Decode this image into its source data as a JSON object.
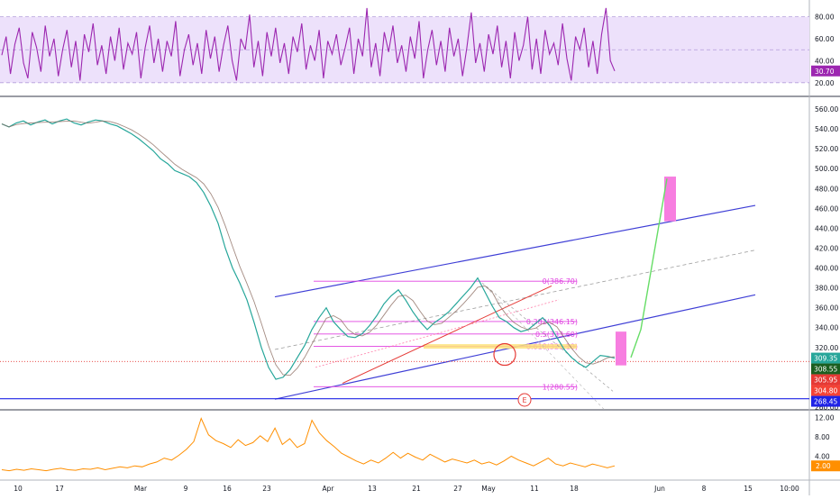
{
  "chart_data": [
    {
      "type": "line",
      "panel": "oscillator",
      "series": [
        {
          "values": [
            45,
            62,
            28,
            55,
            70,
            38,
            24,
            66,
            52,
            30,
            72,
            44,
            60,
            26,
            50,
            68,
            34,
            58,
            22,
            64,
            48,
            74,
            36,
            54,
            28,
            62,
            40,
            70,
            32,
            56,
            46,
            66,
            24,
            52,
            72,
            38,
            60,
            30,
            58,
            44,
            76,
            26,
            50,
            64,
            36,
            56,
            28,
            68,
            42,
            62,
            30,
            54,
            72,
            40,
            22,
            60,
            50,
            82,
            34,
            58,
            26,
            66,
            44,
            70,
            38,
            56,
            28,
            62,
            48,
            74,
            32,
            54,
            40,
            68,
            24,
            58,
            46,
            64,
            36,
            52,
            70,
            28,
            60,
            44,
            88,
            34,
            56,
            26,
            66,
            48,
            72,
            38,
            54,
            30,
            62,
            42,
            76,
            24,
            50,
            68,
            36,
            58,
            30,
            70,
            44,
            60,
            26,
            52,
            84,
            38,
            56,
            30,
            64,
            46,
            72,
            34,
            58,
            24,
            66,
            40,
            54,
            80,
            32,
            60,
            28,
            68,
            46,
            56,
            36,
            74,
            42,
            22,
            62,
            50,
            70,
            34,
            58,
            28,
            64,
            88,
            40,
            30.7
          ]
        }
      ],
      "ylim": [
        10,
        92
      ],
      "y_ticks": [
        "80.00",
        "60.00",
        "40.00",
        "20.00"
      ],
      "band": [
        20,
        80
      ],
      "last_value_label": "30.70",
      "line_color": "#9c27b0",
      "band_color": "#ede1fb"
    },
    {
      "type": "line",
      "panel": "price",
      "series": [
        {
          "values": [
            545,
            542,
            546,
            548,
            544,
            547,
            549,
            545,
            548,
            550,
            546,
            544,
            547,
            549,
            548,
            545,
            543,
            539,
            535,
            530,
            524,
            518,
            510,
            505,
            498,
            495,
            492,
            486,
            476,
            462,
            445,
            420,
            400,
            385,
            368,
            345,
            320,
            300,
            288,
            290,
            298,
            310,
            322,
            338,
            350,
            360,
            346,
            338,
            331,
            330,
            334,
            342,
            352,
            364,
            372,
            378,
            368,
            356,
            346,
            338,
            345,
            350,
            356,
            364,
            372,
            380,
            390,
            376,
            362,
            350,
            346,
            340,
            336,
            338,
            344,
            350,
            342,
            330,
            318,
            310,
            304,
            300,
            306,
            312,
            311,
            309.35
          ]
        }
      ],
      "x_start": "2020-02-07",
      "x_end": "2020-05-24",
      "ylim": [
        260,
        570
      ],
      "y_ticks": [
        "560.00",
        "540.00",
        "520.00",
        "500.00",
        "480.00",
        "460.00",
        "440.00",
        "420.00",
        "400.00",
        "380.00",
        "360.00",
        "340.00",
        "320.00",
        "300.00",
        "280.00",
        "260.00"
      ],
      "fib_levels": [
        {
          "label": "0(386.70)",
          "value": 386.7
        },
        {
          "label": "0.382(346.15)",
          "value": 346.15
        },
        {
          "label": "0.5(333.60)",
          "value": 333.6
        },
        {
          "label": "0.618(321.10)",
          "value": 321.1
        },
        {
          "label": "1(280.55)",
          "value": 280.55
        }
      ],
      "price_labels": [
        {
          "text": "309.35",
          "value": 309.35,
          "color": "#26a69a"
        },
        {
          "text": "308.55",
          "value": 308.55,
          "color": "#1b5e20"
        },
        {
          "text": "305.95",
          "value": 305.95,
          "color": "#e53935"
        },
        {
          "text": "304.80",
          "value": 304.8,
          "color": "#f44336"
        },
        {
          "text": "268.45",
          "value": 268.45,
          "color": "#1e22e6"
        }
      ],
      "support_level": 268.45,
      "annotation_marker": "E",
      "projection_target": 490,
      "colors": {
        "channel": "#3f3fd6",
        "fib": "#e040e0",
        "projection": "#66dd66",
        "box": "#f77ee0",
        "highlight": "#fde27a"
      }
    },
    {
      "type": "area",
      "panel": "volatility",
      "series": [
        {
          "values": [
            1.2,
            1.0,
            1.3,
            1.1,
            1.4,
            1.2,
            1.0,
            1.3,
            1.5,
            1.2,
            1.1,
            1.4,
            1.3,
            1.6,
            1.2,
            1.5,
            1.8,
            1.6,
            2.0,
            1.8,
            2.4,
            2.8,
            3.6,
            3.2,
            4.2,
            5.4,
            7.0,
            11.8,
            8.4,
            7.2,
            6.6,
            5.8,
            7.4,
            6.2,
            6.8,
            8.2,
            7.0,
            9.8,
            6.4,
            7.6,
            5.8,
            6.6,
            11.4,
            8.8,
            7.2,
            6.0,
            4.6,
            3.8,
            3.0,
            2.4,
            3.2,
            2.6,
            3.6,
            4.8,
            3.6,
            4.6,
            3.8,
            3.2,
            4.4,
            3.6,
            2.8,
            3.4,
            3.0,
            2.6,
            3.2,
            2.4,
            2.8,
            2.2,
            3.0,
            4.0,
            3.2,
            2.6,
            2.0,
            2.8,
            3.6,
            2.4,
            2.0,
            2.6,
            2.2,
            1.8,
            2.4,
            2.0,
            1.6,
            2.0
          ]
        }
      ],
      "ylim": [
        0,
        13
      ],
      "y_ticks": [
        "12.00",
        "8.00",
        "4.00"
      ],
      "last_value_label": "2.00",
      "line_color": "#ff8f00"
    }
  ],
  "x_axis_labels": [
    "10",
    "17",
    "Mar",
    "9",
    "16",
    "23",
    "Apr",
    "13",
    "21",
    "27",
    "May",
    "11",
    "18",
    "Jun",
    "8",
    "15",
    "10:00"
  ]
}
